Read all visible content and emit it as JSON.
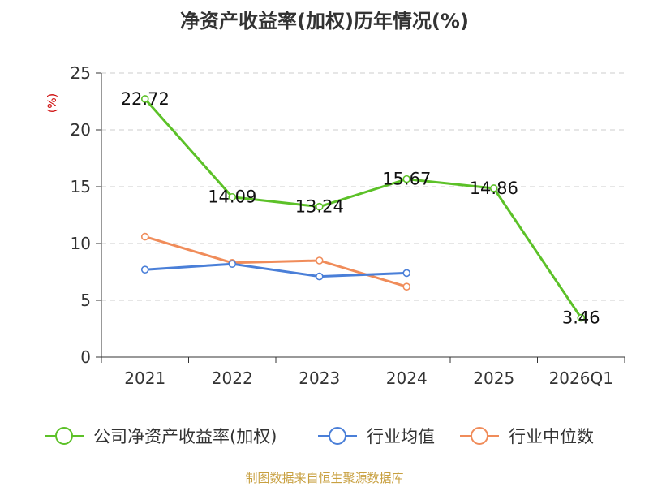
{
  "chart_data": {
    "type": "line",
    "title": "净资产收益率(加权)历年情况(%)",
    "ylabel": "(%)",
    "xlabel": "",
    "categories": [
      "2021",
      "2022",
      "2023",
      "2024",
      "2025",
      "2026Q1"
    ],
    "y_ticks": [
      "0",
      "5",
      "10",
      "15",
      "20",
      "25"
    ],
    "ylim": [
      0,
      25
    ],
    "grid": true,
    "legend_position": "bottom",
    "series": [
      {
        "name": "公司净资产收益率(加权)",
        "color": "#5cc128",
        "values": [
          22.72,
          14.09,
          13.24,
          15.67,
          14.86,
          3.46
        ],
        "labels": [
          "22.72",
          "14.09",
          "13.24",
          "15.67",
          "14.86",
          "3.46"
        ],
        "show_labels": true
      },
      {
        "name": "行业均值",
        "color": "#4a7fd8",
        "values": [
          7.7,
          8.2,
          7.1,
          7.4,
          null,
          null
        ],
        "show_labels": false
      },
      {
        "name": "行业中位数",
        "color": "#f08c5a",
        "values": [
          10.6,
          8.3,
          8.5,
          6.2,
          null,
          null
        ],
        "show_labels": false
      }
    ]
  },
  "source": "制图数据来自恒生聚源数据库",
  "colors": {
    "title": "#333333",
    "ylabel": "#cc0000",
    "source": "#c8a040",
    "grid": "#cccccc",
    "axis": "#333333"
  }
}
